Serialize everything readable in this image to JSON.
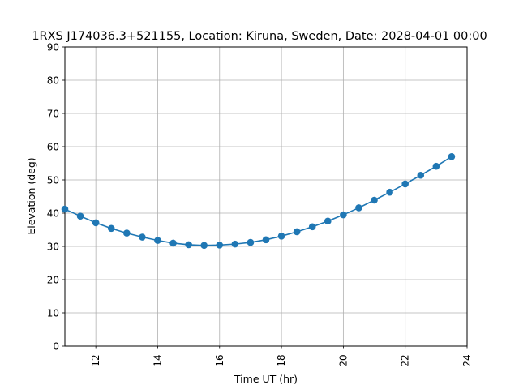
{
  "chart_data": {
    "type": "line",
    "title": "1RXS J174036.3+521155,  Location: Kiruna, Sweden, Date: 2028-04-01 00:00",
    "xlabel": "Time UT (hr)",
    "ylabel": "Elevation (deg)",
    "xlim": [
      11,
      24
    ],
    "ylim": [
      0,
      90
    ],
    "xticks": [
      12,
      14,
      16,
      18,
      20,
      22,
      24
    ],
    "yticks": [
      0,
      10,
      20,
      30,
      40,
      50,
      60,
      70,
      80,
      90
    ],
    "grid": true,
    "color": "#1f77b4",
    "series": [
      {
        "x": [
          11.0,
          11.5,
          12.0,
          12.5,
          13.0,
          13.5,
          14.0,
          14.5,
          15.0,
          15.5,
          16.0,
          16.5,
          17.0,
          17.5,
          18.0,
          18.5,
          19.0,
          19.5,
          20.0,
          20.5,
          21.0,
          21.5,
          22.0,
          22.5,
          23.0,
          23.5
        ],
        "y": [
          41.2,
          39.1,
          37.1,
          35.4,
          34.0,
          32.8,
          31.8,
          31.0,
          30.5,
          30.3,
          30.4,
          30.7,
          31.2,
          32.0,
          33.1,
          34.4,
          35.9,
          37.6,
          39.5,
          41.6,
          43.9,
          46.3,
          48.8,
          51.4,
          54.1,
          57.0
        ]
      }
    ]
  }
}
